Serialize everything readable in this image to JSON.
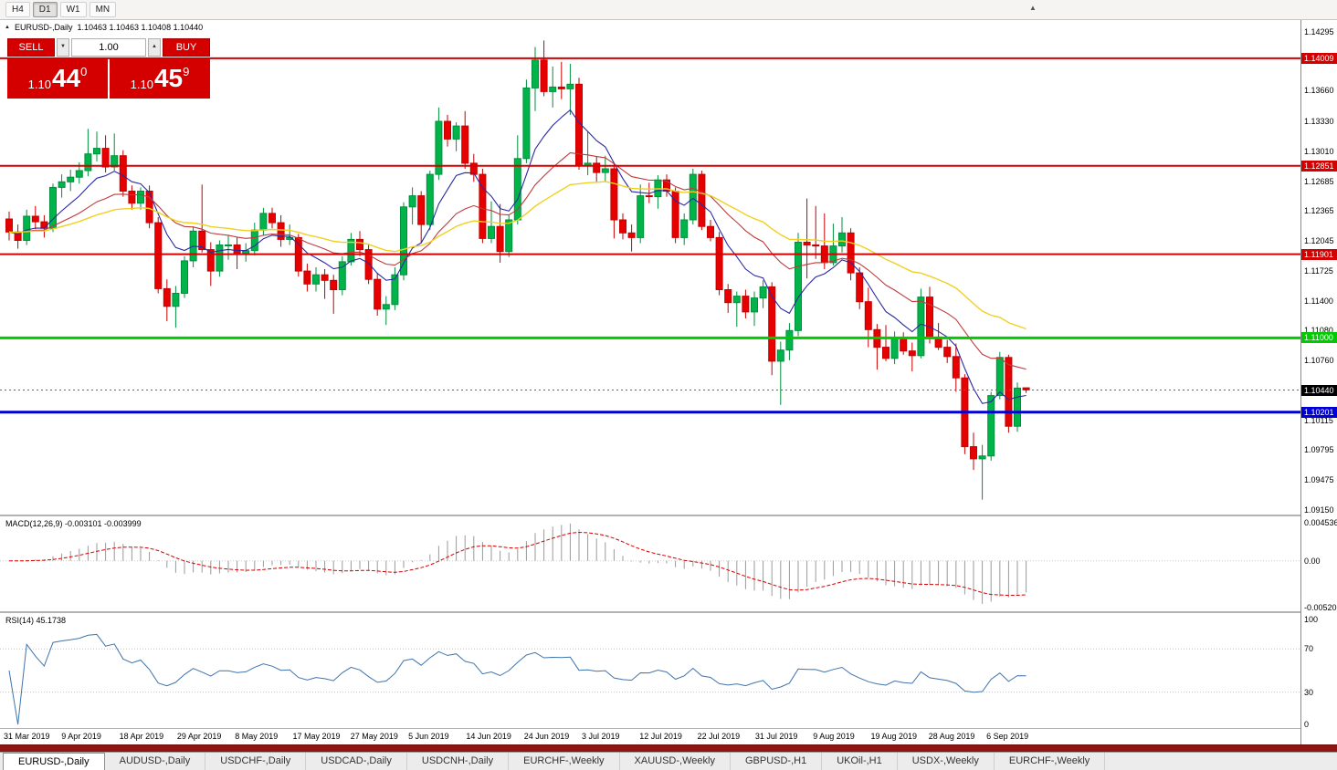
{
  "toolbar": {
    "timeframes": [
      {
        "label": "H4",
        "active": false
      },
      {
        "label": "D1",
        "active": true
      },
      {
        "label": "W1",
        "active": false
      },
      {
        "label": "MN",
        "active": false
      }
    ]
  },
  "icons": {
    "collapse_triangle": "▲",
    "toolbar_arrow": "▲",
    "spinner_down": "▼",
    "spinner_up": "▲"
  },
  "window": {
    "title": "EURUSD-,Daily",
    "ohlc": "1.10463 1.10463 1.10408 1.10440"
  },
  "trade_panel": {
    "sell_label": "SELL",
    "buy_label": "BUY",
    "volume": "1.00",
    "bid": {
      "prefix": "1.10",
      "big": "44",
      "pips": "0"
    },
    "ask": {
      "prefix": "1.10",
      "big": "45",
      "pips": "9"
    }
  },
  "chart_data": {
    "type": "candlestick",
    "symbol": "EURUSD-",
    "timeframe": "Daily",
    "ohlc_display": {
      "open": "1.10463",
      "high": "1.10463",
      "low": "1.10408",
      "close": "1.10440"
    },
    "price_axis_ticks": [
      "1.14295",
      "1.13660",
      "1.13330",
      "1.13010",
      "1.12685",
      "1.12365",
      "1.12045",
      "1.11725",
      "1.11400",
      "1.11080",
      "1.10760",
      "1.10115",
      "1.09795",
      "1.09475",
      "1.09150"
    ],
    "x_labels": [
      "31 Mar 2019",
      "9 Apr 2019",
      "18 Apr 2019",
      "29 Apr 2019",
      "8 May 2019",
      "17 May 2019",
      "27 May 2019",
      "5 Jun 2019",
      "14 Jun 2019",
      "24 Jun 2019",
      "3 Jul 2019",
      "12 Jul 2019",
      "22 Jul 2019",
      "31 Jul 2019",
      "9 Aug 2019",
      "19 Aug 2019",
      "28 Aug 2019",
      "6 Sep 2019"
    ],
    "candles": [
      [
        1.1228,
        1.1236,
        1.1205,
        1.1214
      ],
      [
        1.1214,
        1.1222,
        1.1196,
        1.1205
      ],
      [
        1.1205,
        1.1238,
        1.12,
        1.1231
      ],
      [
        1.1231,
        1.1242,
        1.1217,
        1.1225
      ],
      [
        1.1225,
        1.1232,
        1.1208,
        1.1218
      ],
      [
        1.1218,
        1.1266,
        1.1214,
        1.1262
      ],
      [
        1.1262,
        1.1276,
        1.1251,
        1.1268
      ],
      [
        1.1268,
        1.1281,
        1.1258,
        1.1273
      ],
      [
        1.1273,
        1.1289,
        1.1266,
        1.128
      ],
      [
        1.128,
        1.1325,
        1.1274,
        1.1298
      ],
      [
        1.1298,
        1.1322,
        1.129,
        1.1304
      ],
      [
        1.1304,
        1.1318,
        1.1278,
        1.1284
      ],
      [
        1.1284,
        1.132,
        1.128,
        1.1296
      ],
      [
        1.1296,
        1.1302,
        1.1252,
        1.1258
      ],
      [
        1.1258,
        1.1264,
        1.1238,
        1.1245
      ],
      [
        1.1245,
        1.1262,
        1.1238,
        1.1258
      ],
      [
        1.1258,
        1.1264,
        1.1218,
        1.1224
      ],
      [
        1.1224,
        1.123,
        1.1148,
        1.1153
      ],
      [
        1.1153,
        1.1163,
        1.1118,
        1.1134
      ],
      [
        1.1134,
        1.1156,
        1.1111,
        1.1148
      ],
      [
        1.1148,
        1.1188,
        1.1143,
        1.1183
      ],
      [
        1.1183,
        1.122,
        1.1176,
        1.1215
      ],
      [
        1.1215,
        1.1265,
        1.1192,
        1.1195
      ],
      [
        1.1195,
        1.1203,
        1.1156,
        1.1172
      ],
      [
        1.1172,
        1.1205,
        1.1166,
        1.12
      ],
      [
        1.12,
        1.121,
        1.1184,
        1.12
      ],
      [
        1.12,
        1.1208,
        1.1174,
        1.119
      ],
      [
        1.119,
        1.1202,
        1.1182,
        1.1194
      ],
      [
        1.1194,
        1.1224,
        1.1189,
        1.1216
      ],
      [
        1.1216,
        1.124,
        1.121,
        1.1234
      ],
      [
        1.1234,
        1.124,
        1.1218,
        1.1224
      ],
      [
        1.1224,
        1.1232,
        1.1198,
        1.1206
      ],
      [
        1.1206,
        1.1222,
        1.12,
        1.1208
      ],
      [
        1.1208,
        1.1212,
        1.1166,
        1.1172
      ],
      [
        1.1172,
        1.118,
        1.115,
        1.1158
      ],
      [
        1.1158,
        1.1176,
        1.115,
        1.1168
      ],
      [
        1.1168,
        1.1174,
        1.1142,
        1.1162
      ],
      [
        1.1162,
        1.1168,
        1.1126,
        1.1152
      ],
      [
        1.1152,
        1.1188,
        1.1146,
        1.1182
      ],
      [
        1.1182,
        1.1213,
        1.1178,
        1.1206
      ],
      [
        1.1206,
        1.1215,
        1.1188,
        1.1195
      ],
      [
        1.1195,
        1.12,
        1.1158,
        1.1163
      ],
      [
        1.1163,
        1.117,
        1.1124,
        1.1131
      ],
      [
        1.1131,
        1.1145,
        1.1114,
        1.1136
      ],
      [
        1.1136,
        1.1176,
        1.113,
        1.1168
      ],
      [
        1.1168,
        1.1246,
        1.1162,
        1.1241
      ],
      [
        1.1241,
        1.1262,
        1.1222,
        1.1253
      ],
      [
        1.1253,
        1.1258,
        1.1202,
        1.1222
      ],
      [
        1.1222,
        1.128,
        1.1216,
        1.1276
      ],
      [
        1.1276,
        1.1348,
        1.127,
        1.1333
      ],
      [
        1.1333,
        1.134,
        1.1306,
        1.1314
      ],
      [
        1.1314,
        1.1332,
        1.1301,
        1.1328
      ],
      [
        1.1328,
        1.1344,
        1.1282,
        1.1288
      ],
      [
        1.1288,
        1.1298,
        1.1268,
        1.1276
      ],
      [
        1.1276,
        1.1282,
        1.1202,
        1.1207
      ],
      [
        1.1207,
        1.1247,
        1.1202,
        1.122
      ],
      [
        1.122,
        1.1244,
        1.1181,
        1.1193
      ],
      [
        1.1193,
        1.1232,
        1.1187,
        1.1227
      ],
      [
        1.1227,
        1.1318,
        1.1222,
        1.1293
      ],
      [
        1.1293,
        1.1378,
        1.1288,
        1.1369
      ],
      [
        1.1369,
        1.1413,
        1.1344,
        1.1399
      ],
      [
        1.1399,
        1.142,
        1.136,
        1.1365
      ],
      [
        1.1365,
        1.1392,
        1.1348,
        1.137
      ],
      [
        1.137,
        1.1397,
        1.1357,
        1.1368
      ],
      [
        1.1368,
        1.1395,
        1.134,
        1.1373
      ],
      [
        1.1373,
        1.138,
        1.1281,
        1.1285
      ],
      [
        1.1285,
        1.1322,
        1.1275,
        1.1288
      ],
      [
        1.1288,
        1.1295,
        1.1268,
        1.1278
      ],
      [
        1.1278,
        1.1296,
        1.1268,
        1.1282
      ],
      [
        1.1282,
        1.1288,
        1.1207,
        1.1227
      ],
      [
        1.1227,
        1.1234,
        1.1206,
        1.1213
      ],
      [
        1.1213,
        1.1222,
        1.1193,
        1.1208
      ],
      [
        1.1208,
        1.1265,
        1.1202,
        1.1253
      ],
      [
        1.1253,
        1.1267,
        1.1245,
        1.1252
      ],
      [
        1.1252,
        1.1275,
        1.1239,
        1.127
      ],
      [
        1.127,
        1.1276,
        1.1252,
        1.1258
      ],
      [
        1.1258,
        1.1262,
        1.1202,
        1.1208
      ],
      [
        1.1208,
        1.1234,
        1.12,
        1.1227
      ],
      [
        1.1227,
        1.1282,
        1.1222,
        1.1276
      ],
      [
        1.1276,
        1.128,
        1.1216,
        1.122
      ],
      [
        1.122,
        1.1227,
        1.1204,
        1.1208
      ],
      [
        1.1208,
        1.1214,
        1.1146,
        1.1152
      ],
      [
        1.1152,
        1.1158,
        1.1127,
        1.1138
      ],
      [
        1.1138,
        1.115,
        1.1112,
        1.1145
      ],
      [
        1.1145,
        1.1152,
        1.1121,
        1.1128
      ],
      [
        1.1128,
        1.115,
        1.1113,
        1.1143
      ],
      [
        1.1143,
        1.1162,
        1.1132,
        1.1155
      ],
      [
        1.1155,
        1.116,
        1.106,
        1.1075
      ],
      [
        1.1075,
        1.1096,
        1.1028,
        1.1087
      ],
      [
        1.1087,
        1.1116,
        1.1076,
        1.1108
      ],
      [
        1.1108,
        1.1213,
        1.1102,
        1.1203
      ],
      [
        1.1203,
        1.125,
        1.1164,
        1.12
      ],
      [
        1.12,
        1.1242,
        1.1185,
        1.1199
      ],
      [
        1.1199,
        1.1234,
        1.1174,
        1.1181
      ],
      [
        1.1181,
        1.1223,
        1.1178,
        1.1199
      ],
      [
        1.1199,
        1.123,
        1.1192,
        1.1213
      ],
      [
        1.1213,
        1.1218,
        1.1162,
        1.117
      ],
      [
        1.117,
        1.1176,
        1.1131,
        1.1139
      ],
      [
        1.1139,
        1.1154,
        1.109,
        1.1109
      ],
      [
        1.1109,
        1.1115,
        1.1066,
        1.109
      ],
      [
        1.109,
        1.1114,
        1.1075,
        1.1078
      ],
      [
        1.1078,
        1.1107,
        1.1072,
        1.11
      ],
      [
        1.11,
        1.1106,
        1.1082,
        1.1086
      ],
      [
        1.1086,
        1.1095,
        1.1064,
        1.1081
      ],
      [
        1.1081,
        1.1153,
        1.1078,
        1.1144
      ],
      [
        1.1144,
        1.1155,
        1.1094,
        1.1101
      ],
      [
        1.1101,
        1.1116,
        1.1087,
        1.109
      ],
      [
        1.109,
        1.1098,
        1.1073,
        1.108
      ],
      [
        1.108,
        1.1094,
        1.1042,
        1.1057
      ],
      [
        1.1057,
        1.1061,
        1.0975,
        1.0983
      ],
      [
        1.0983,
        1.0998,
        1.0958,
        1.097
      ],
      [
        1.097,
        1.0985,
        1.0926,
        1.0973
      ],
      [
        1.0973,
        1.1042,
        1.0968,
        1.1038
      ],
      [
        1.1038,
        1.1085,
        1.1034,
        1.1079
      ],
      [
        1.1079,
        1.1082,
        1.0998,
        1.1005
      ],
      [
        1.1005,
        1.1052,
        1.0999,
        1.1046
      ],
      [
        1.10463,
        1.10463,
        1.10408,
        1.1044
      ]
    ],
    "overlays": [
      {
        "name": "ma-fast-line",
        "period": 8,
        "color": "#2929a3",
        "width": 1.1
      },
      {
        "name": "ma-mid-line",
        "period": 20,
        "color": "#c03a3a",
        "width": 1.1
      },
      {
        "name": "ma-slow-line",
        "period": 40,
        "color": "#f0d020",
        "width": 1.4
      }
    ],
    "hlines": [
      {
        "price": 1.14009,
        "label": "1.14009",
        "color": "#d40000",
        "width": 2
      },
      {
        "price": 1.12851,
        "label": "1.12851",
        "color": "#d40000",
        "width": 2
      },
      {
        "price": 1.11901,
        "label": "1.11901",
        "color": "#d40000",
        "width": 2
      },
      {
        "price": 1.11,
        "label": "1.11000",
        "color": "#00ca00",
        "width": 3
      },
      {
        "price": 1.10201,
        "label": "1.10201",
        "color": "#0000d6",
        "width": 3
      }
    ],
    "current_price": {
      "price": 1.1044,
      "label": "1.10440",
      "label_bg": "#000000"
    },
    "colors": {
      "up": "#00b44a",
      "up_stroke": "#008f3c",
      "down": "#e60000",
      "down_stroke": "#c40000"
    },
    "indicators": [
      {
        "name": "MACD",
        "params": [
          12,
          26,
          9
        ],
        "label": "MACD(12,26,9) -0.003101 -0.003999",
        "values": {
          "main": "-0.003101",
          "signal": "-0.003999"
        },
        "axis": [
          {
            "text": "0.004536",
            "value": 0.004536
          },
          {
            "text": "0.00",
            "value": 0
          },
          {
            "text": "-0.005205",
            "value": -0.005205
          }
        ],
        "hist_color": "#9a9a9a",
        "signal_color": "#d40000"
      },
      {
        "name": "RSI",
        "period": 14,
        "label": "RSI(14) 45.1738",
        "value": "45.1738",
        "axis": [
          {
            "text": "100",
            "value": 100
          },
          {
            "text": "70",
            "value": 70
          },
          {
            "text": "30",
            "value": 30
          },
          {
            "text": "0",
            "value": 0
          }
        ],
        "levels": [
          70,
          30
        ],
        "line_color": "#3f74ad"
      }
    ]
  },
  "tabs": [
    {
      "label": "EURUSD-,Daily",
      "active": true
    },
    {
      "label": "AUDUSD-,Daily",
      "active": false
    },
    {
      "label": "USDCHF-,Daily",
      "active": false
    },
    {
      "label": "USDCAD-,Daily",
      "active": false
    },
    {
      "label": "USDCNH-,Daily",
      "active": false
    },
    {
      "label": "EURCHF-,Weekly",
      "active": false
    },
    {
      "label": "XAUUSD-,Weekly",
      "active": false
    },
    {
      "label": "GBPUSD-,H1",
      "active": false
    },
    {
      "label": "UKOil-,H1",
      "active": false
    },
    {
      "label": "USDX-,Weekly",
      "active": false
    },
    {
      "label": "EURCHF-,Weekly",
      "active": false
    }
  ]
}
